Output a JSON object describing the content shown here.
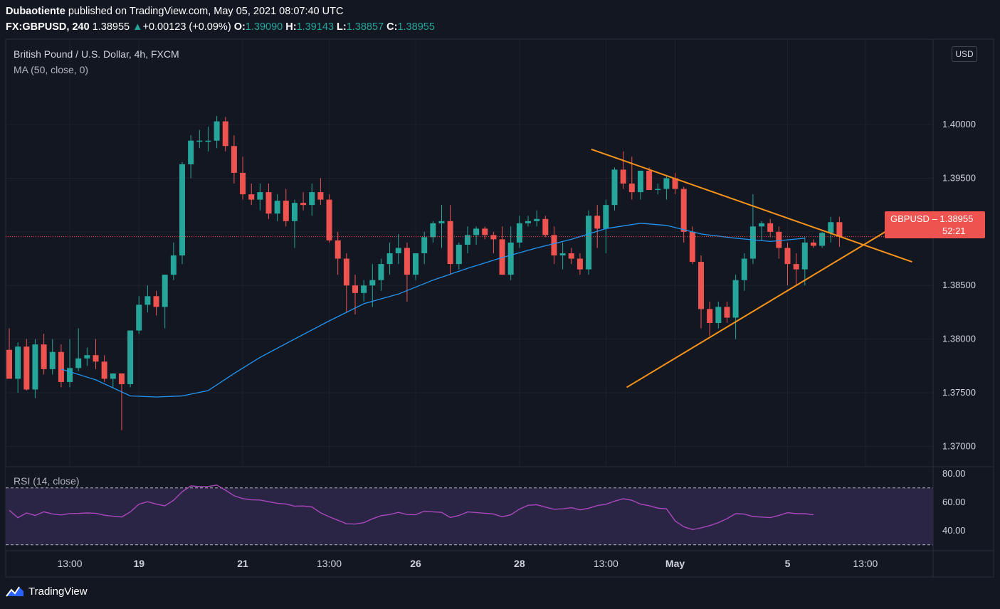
{
  "header": {
    "publisher": "Dubaotiente",
    "published_text": "published on TradingView.com, May 05, 2021 08:07:40 UTC",
    "symbol": "FX:GBPUSD, 240",
    "last": "1.38955",
    "change_arrow": "▲",
    "change": "+0.00123 (+0.09%)",
    "o_label": "O:",
    "o": "1.39090",
    "h_label": "H:",
    "h": "1.39143",
    "l_label": "L:",
    "l": "1.38857",
    "c_label": "C:",
    "c": "1.38955"
  },
  "overlay": {
    "title": "British Pound / U.S. Dollar, 4h, FXCM",
    "ma": "MA (50, close, 0)",
    "rsi": "RSI (14, close)",
    "currency_button": "USD"
  },
  "price_tag": {
    "symbol": "GBPUSD",
    "price": "1.38955",
    "countdown": "52:21"
  },
  "brand": {
    "name": "TradingView",
    "icon": "tradingview-logo-icon"
  },
  "colors": {
    "background": "#131722",
    "up": "#26a69a",
    "down": "#ef5350",
    "ma": "#2962ff",
    "trendline": "#f7931a",
    "rsi": "#9c27b0",
    "grid": "#1e222d"
  },
  "chart_data": [
    {
      "type": "candlestick",
      "title": "British Pound / U.S. Dollar, 4h, FXCM",
      "ylim": [
        1.3685,
        1.4079
      ],
      "y_ticks": [
        "1.40000",
        "1.39500",
        "1.39000",
        "1.38500",
        "1.38000",
        "1.37500",
        "1.37000"
      ],
      "x_ticks": [
        {
          "label": "13:00",
          "index": 7
        },
        {
          "label": "19",
          "index": 15
        },
        {
          "label": "21",
          "index": 27
        },
        {
          "label": "13:00",
          "index": 37
        },
        {
          "label": "26",
          "index": 47
        },
        {
          "label": "28",
          "index": 59
        },
        {
          "label": "13:00",
          "index": 69
        },
        {
          "label": "May",
          "index": 77
        },
        {
          "label": "5",
          "index": 90
        },
        {
          "label": "13:00",
          "index": 99
        }
      ],
      "candles": [
        [
          1.379,
          1.381,
          1.3765,
          1.3763
        ],
        [
          1.3763,
          1.3797,
          1.375,
          1.3793
        ],
        [
          1.3793,
          1.38,
          1.3752,
          1.3753
        ],
        [
          1.3753,
          1.38,
          1.3745,
          1.3795
        ],
        [
          1.3795,
          1.3805,
          1.3767,
          1.3772
        ],
        [
          1.3772,
          1.38,
          1.3767,
          1.3788
        ],
        [
          1.3788,
          1.3795,
          1.3755,
          1.376
        ],
        [
          1.376,
          1.38,
          1.3755,
          1.3773
        ],
        [
          1.3773,
          1.381,
          1.377,
          1.3782
        ],
        [
          1.3782,
          1.3792,
          1.3775,
          1.3785
        ],
        [
          1.3785,
          1.38,
          1.3772,
          1.3779
        ],
        [
          1.3779,
          1.3785,
          1.376,
          1.3763
        ],
        [
          1.3763,
          1.3768,
          1.3755,
          1.3768
        ],
        [
          1.3768,
          1.3768,
          1.3715,
          1.3758
        ],
        [
          1.3758,
          1.3808,
          1.3755,
          1.3808
        ],
        [
          1.3808,
          1.384,
          1.3805,
          1.3832
        ],
        [
          1.3832,
          1.385,
          1.3825,
          1.384
        ],
        [
          1.384,
          1.3845,
          1.3822,
          1.383
        ],
        [
          1.383,
          1.386,
          1.381,
          1.386
        ],
        [
          1.386,
          1.389,
          1.3855,
          1.3878
        ],
        [
          1.3878,
          1.3965,
          1.387,
          1.3963
        ],
        [
          1.3963,
          1.399,
          1.395,
          1.3985
        ],
        [
          1.3985,
          1.3995,
          1.3978,
          1.3985
        ],
        [
          1.3985,
          1.3998,
          1.3975,
          1.3985
        ],
        [
          1.3985,
          1.4008,
          1.3978,
          1.4003
        ],
        [
          1.4003,
          1.4007,
          1.3975,
          1.398
        ],
        [
          1.398,
          1.399,
          1.3945,
          1.3955
        ],
        [
          1.3955,
          1.397,
          1.393,
          1.3935
        ],
        [
          1.3935,
          1.3945,
          1.3925,
          1.393
        ],
        [
          1.393,
          1.3945,
          1.392,
          1.3937
        ],
        [
          1.3937,
          1.3945,
          1.3912,
          1.3917
        ],
        [
          1.3917,
          1.3935,
          1.391,
          1.3929
        ],
        [
          1.3929,
          1.394,
          1.3905,
          1.391
        ],
        [
          1.391,
          1.393,
          1.3885,
          1.3927
        ],
        [
          1.3927,
          1.3937,
          1.392,
          1.3925
        ],
        [
          1.3925,
          1.3945,
          1.3915,
          1.3937
        ],
        [
          1.3937,
          1.395,
          1.3925,
          1.393
        ],
        [
          1.393,
          1.3935,
          1.389,
          1.3892
        ],
        [
          1.3892,
          1.39,
          1.386,
          1.3875
        ],
        [
          1.3875,
          1.388,
          1.3825,
          1.385
        ],
        [
          1.385,
          1.386,
          1.3823,
          1.3843
        ],
        [
          1.3843,
          1.3855,
          1.3835,
          1.385
        ],
        [
          1.385,
          1.387,
          1.383,
          1.3855
        ],
        [
          1.3855,
          1.3875,
          1.3845,
          1.387
        ],
        [
          1.387,
          1.389,
          1.386,
          1.388
        ],
        [
          1.388,
          1.3898,
          1.387,
          1.3885
        ],
        [
          1.3885,
          1.389,
          1.3835,
          1.386
        ],
        [
          1.386,
          1.388,
          1.3855,
          1.388
        ],
        [
          1.388,
          1.39,
          1.387,
          1.3895
        ],
        [
          1.3895,
          1.391,
          1.389,
          1.3908
        ],
        [
          1.3908,
          1.3925,
          1.3885,
          1.391
        ],
        [
          1.391,
          1.3925,
          1.386,
          1.387
        ],
        [
          1.387,
          1.389,
          1.3865,
          1.3888
        ],
        [
          1.3888,
          1.3905,
          1.388,
          1.3897
        ],
        [
          1.3897,
          1.3905,
          1.3888,
          1.3903
        ],
        [
          1.3903,
          1.3905,
          1.3893,
          1.3897
        ],
        [
          1.3897,
          1.39,
          1.388,
          1.3893
        ],
        [
          1.3893,
          1.3905,
          1.386,
          1.386
        ],
        [
          1.386,
          1.3905,
          1.3855,
          1.389
        ],
        [
          1.389,
          1.3915,
          1.3885,
          1.3908
        ],
        [
          1.3908,
          1.3915,
          1.3905,
          1.391
        ],
        [
          1.391,
          1.392,
          1.3905,
          1.3912
        ],
        [
          1.3912,
          1.3915,
          1.3895,
          1.3897
        ],
        [
          1.3897,
          1.3905,
          1.387,
          1.3878
        ],
        [
          1.3878,
          1.389,
          1.3865,
          1.388
        ],
        [
          1.388,
          1.3885,
          1.387,
          1.3875
        ],
        [
          1.3875,
          1.388,
          1.386,
          1.3865
        ],
        [
          1.3865,
          1.392,
          1.386,
          1.3915
        ],
        [
          1.3915,
          1.3925,
          1.3885,
          1.3903
        ],
        [
          1.3903,
          1.393,
          1.388,
          1.3925
        ],
        [
          1.3925,
          1.396,
          1.392,
          1.3958
        ],
        [
          1.3958,
          1.3975,
          1.394,
          1.3945
        ],
        [
          1.3945,
          1.397,
          1.393,
          1.3937
        ],
        [
          1.3937,
          1.3957,
          1.393,
          1.3957
        ],
        [
          1.3957,
          1.396,
          1.394,
          1.3939
        ],
        [
          1.3939,
          1.3945,
          1.3935,
          1.394
        ],
        [
          1.394,
          1.3953,
          1.393,
          1.395
        ],
        [
          1.395,
          1.3955,
          1.3935,
          1.394
        ]
      ],
      "candles_b": [
        [
          1.394,
          1.3942,
          1.389,
          1.39
        ],
        [
          1.39,
          1.3905,
          1.387,
          1.3872
        ],
        [
          1.3872,
          1.3878,
          1.381,
          1.3828
        ],
        [
          1.3828,
          1.3835,
          1.3803,
          1.3815
        ],
        [
          1.3815,
          1.3835,
          1.381,
          1.383
        ],
        [
          1.383,
          1.3835,
          1.3815,
          1.382
        ],
        [
          1.382,
          1.386,
          1.38,
          1.3855
        ],
        [
          1.3855,
          1.388,
          1.3845,
          1.3875
        ],
        [
          1.3875,
          1.3935,
          1.387,
          1.3905
        ],
        [
          1.3905,
          1.391,
          1.3892,
          1.3908
        ],
        [
          1.3908,
          1.3912,
          1.3895,
          1.39
        ],
        [
          1.39,
          1.3905,
          1.3875,
          1.3885
        ],
        [
          1.3885,
          1.389,
          1.385,
          1.387
        ],
        [
          1.387,
          1.388,
          1.385,
          1.3865
        ],
        [
          1.3865,
          1.3895,
          1.385,
          1.389
        ],
        [
          1.389,
          1.3893,
          1.3885,
          1.3887
        ],
        [
          1.3887,
          1.39,
          1.3885,
          1.3899
        ],
        [
          1.3899,
          1.3914,
          1.389,
          1.3909
        ],
        [
          1.3909,
          1.3914,
          1.3886,
          1.38955
        ]
      ],
      "ma": [
        [
          6,
          1.3772
        ],
        [
          10,
          1.3762
        ],
        [
          14,
          1.3747
        ],
        [
          17,
          1.3746
        ],
        [
          20,
          1.3747
        ],
        [
          23,
          1.3752
        ],
        [
          26,
          1.3768
        ],
        [
          29,
          1.3783
        ],
        [
          33,
          1.38
        ],
        [
          37,
          1.3817
        ],
        [
          41,
          1.3833
        ],
        [
          45,
          1.3842
        ],
        [
          49,
          1.3855
        ],
        [
          53,
          1.3866
        ],
        [
          57,
          1.3876
        ],
        [
          61,
          1.3885
        ],
        [
          65,
          1.3893
        ],
        [
          69,
          1.3903
        ],
        [
          73,
          1.3908
        ],
        [
          76,
          1.3906
        ],
        [
          80,
          1.3898
        ],
        [
          84,
          1.3894
        ],
        [
          88,
          1.3891
        ],
        [
          92,
          1.3894
        ]
      ],
      "trendlines": [
        [
          [
            67.3,
            1.3977
          ],
          [
            104.4,
            1.3872
          ]
        ],
        [
          [
            71.4,
            1.3755
          ],
          [
            101.3,
            1.39
          ]
        ]
      ],
      "last_price": 1.38955
    },
    {
      "type": "line",
      "title": "RSI (14, close)",
      "ylim": [
        26.4,
        84.4
      ],
      "y_ticks": [
        "80.00",
        "60.00",
        "40.00"
      ],
      "bands": [
        30,
        70
      ],
      "series": [
        {
          "values": [
            54.3,
            49.1,
            52.4,
            50.6,
            53.2,
            51.7,
            51.0,
            52.0,
            52.1,
            52.4,
            52.2,
            50.8,
            50.1,
            49.6,
            53.1,
            58.6,
            60.3,
            58.6,
            57.4,
            61.3,
            67.3,
            71.4,
            70.9,
            71.0,
            72.0,
            68.4,
            64.5,
            62.5,
            61.6,
            61.5,
            60.3,
            59.2,
            58.7,
            57.2,
            57.3,
            56.6,
            52.5,
            49.7,
            47.3,
            44.8,
            44.6,
            45.6,
            48.3,
            50.5,
            51.3,
            52.8,
            51.3,
            51.2,
            53.7,
            53.2,
            52.8,
            49.2,
            50.6,
            53.1,
            52.7,
            52.2,
            51.7,
            49.7,
            51.1,
            55.1,
            57.8,
            58.2,
            56.5,
            55.0,
            55.3,
            56.1,
            54.6,
            55.7,
            57.6,
            58.5,
            60.7,
            62.4,
            61.3,
            58.6,
            57.5,
            55.8,
            55.3,
            46.8,
            42.7,
            40.7,
            41.9,
            43.5,
            45.6,
            48.4,
            51.9,
            51.6,
            49.9,
            49.5,
            49.1,
            50.7,
            52.6,
            51.9,
            51.9,
            51.1
          ]
        }
      ]
    }
  ]
}
